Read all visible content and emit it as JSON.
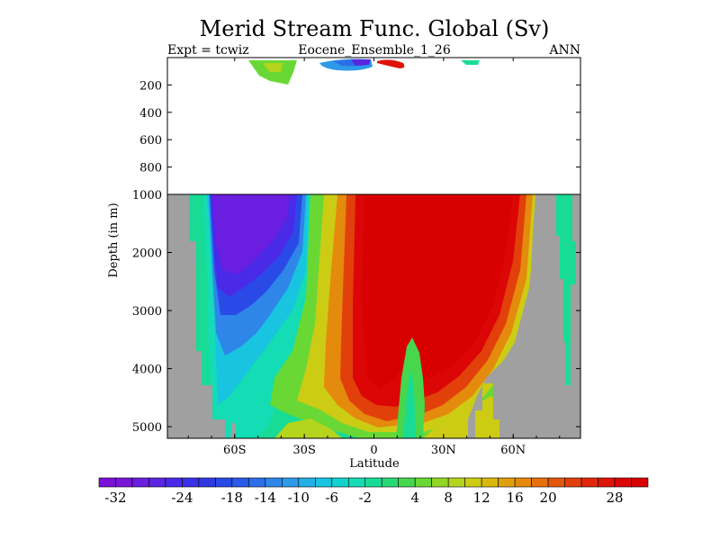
{
  "chart_data": {
    "type": "heatmap",
    "title": "Merid Stream Func. Global (Sv)",
    "subtitle_left": "Expt = tcwiz",
    "subtitle_center": "Eocene_Ensemble_1_26",
    "subtitle_right": "ANN",
    "xlabel": "Latitude",
    "ylabel": "Depth (in m)",
    "x_ticks": [
      "60S",
      "30S",
      "0",
      "30N",
      "60N"
    ],
    "x_tick_values": [
      -60,
      -30,
      0,
      30,
      60
    ],
    "xlim": [
      -89,
      89
    ],
    "upper_panel": {
      "ylim": [
        0,
        1000
      ],
      "y_ticks": [
        "200",
        "400",
        "600",
        "800",
        "1000"
      ],
      "y_tick_values": [
        200,
        400,
        600,
        800,
        1000
      ]
    },
    "lower_panel": {
      "ylim": [
        1000,
        5200
      ],
      "y_ticks": [
        "2000",
        "3000",
        "4000",
        "5000"
      ],
      "y_tick_values": [
        2000,
        3000,
        4000,
        5000
      ]
    },
    "colorbar": {
      "levels": [
        -34,
        -32,
        -30,
        -28,
        -26,
        -24,
        -22,
        -20,
        -18,
        -16,
        -14,
        -12,
        -10,
        -8,
        -6,
        -4,
        -2,
        0,
        2,
        4,
        6,
        8,
        10,
        12,
        14,
        16,
        18,
        20,
        22,
        24,
        26,
        28,
        30,
        32
      ],
      "labels": [
        "-32",
        "-24",
        "-18",
        "-14",
        "-10",
        "-6",
        "-2",
        "4",
        "8",
        "12",
        "16",
        "20",
        "28"
      ],
      "colors": [
        "#7a10d8",
        "#7814d8",
        "#6a1ee0",
        "#5a24e0",
        "#4a2ae8",
        "#3a30e8",
        "#2e3ae0",
        "#2a4ae8",
        "#2a5ae8",
        "#2c6ee8",
        "#2e86e8",
        "#2e9ae8",
        "#22b0e6",
        "#18c4e0",
        "#14d2cc",
        "#14dcb4",
        "#18dc96",
        "#2ad876",
        "#48d64c",
        "#6ad834",
        "#92d628",
        "#b4d41e",
        "#cccc14",
        "#d8b80c",
        "#e0a00c",
        "#e48a0c",
        "#e6700c",
        "#e4560c",
        "#e2400a",
        "#e02808",
        "#de1408",
        "#dc0606",
        "#d80000"
      ]
    },
    "land_color": "#a0a0a0",
    "upper_cells": [
      {
        "lat": -53,
        "depth": 40,
        "value": 4
      },
      {
        "lat": -46,
        "depth": 60,
        "value": 6
      },
      {
        "lat": -10,
        "depth": 40,
        "value": -16
      },
      {
        "lat": -5,
        "depth": 30,
        "value": -28
      },
      {
        "lat": 6,
        "depth": 40,
        "value": 26
      },
      {
        "lat": 42,
        "depth": 30,
        "value": -4
      }
    ],
    "lower_cells": [
      {
        "lat": -58,
        "depth": 1800,
        "value": -30
      },
      {
        "lat": -50,
        "depth": 2400,
        "value": -22
      },
      {
        "lat": -45,
        "depth": 3200,
        "value": -8
      },
      {
        "lat": -34,
        "depth": 4200,
        "value": 10
      },
      {
        "lat": -20,
        "depth": 2800,
        "value": 24
      },
      {
        "lat": -5,
        "depth": 2000,
        "value": 32
      },
      {
        "lat": 20,
        "depth": 2500,
        "value": 32
      },
      {
        "lat": 40,
        "depth": 3200,
        "value": 24
      },
      {
        "lat": 52,
        "depth": 2500,
        "value": 14
      },
      {
        "lat": 14,
        "depth": 4600,
        "value": 0
      },
      {
        "lat": 30,
        "depth": 4300,
        "value": 18
      }
    ]
  }
}
